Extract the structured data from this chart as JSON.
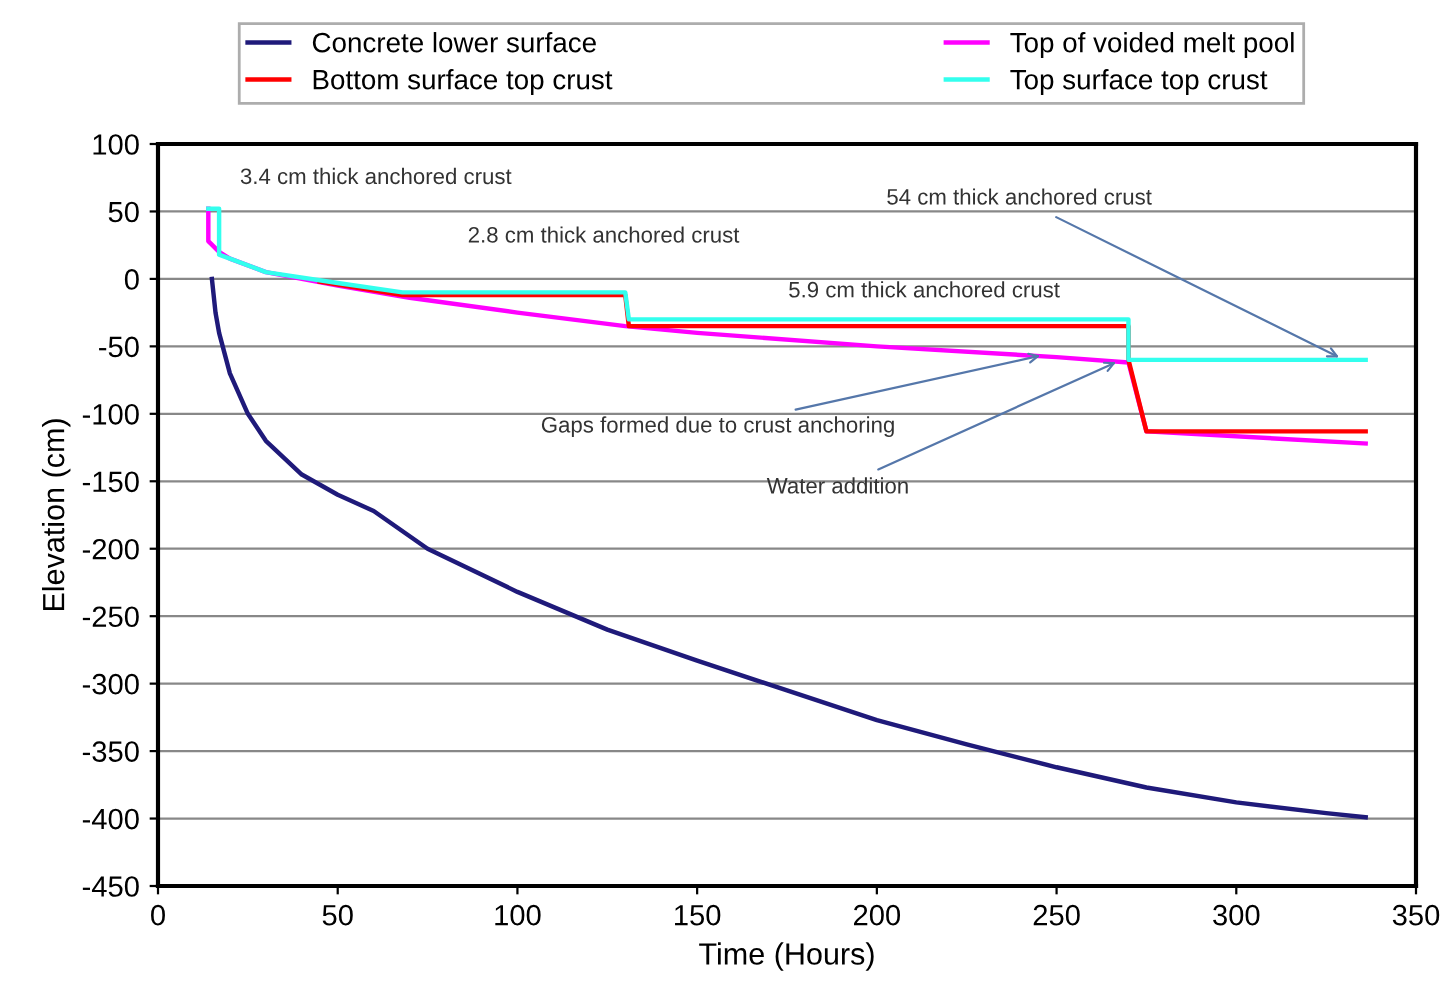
{
  "chart_data": {
    "type": "line",
    "xlabel": "Time (Hours)",
    "ylabel": "Elevation (cm)",
    "xlim": [
      0,
      350
    ],
    "xticks": [
      0,
      50,
      100,
      150,
      200,
      250,
      300,
      350
    ],
    "ylim": [
      -450,
      100
    ],
    "yticks": [
      -450,
      -400,
      -350,
      -300,
      -250,
      -200,
      -150,
      -100,
      -50,
      0,
      50,
      100
    ],
    "grid": "y",
    "legend": "top",
    "marker": "none",
    "line_style": "solid",
    "series": [
      {
        "name": "Concrete lower surface",
        "color": "#1f1a7a",
        "x": [
          15,
          16,
          17,
          20,
          25,
          30,
          40,
          50,
          60,
          75,
          100,
          125,
          150,
          175,
          200,
          225,
          250,
          275,
          300,
          325,
          336
        ],
        "values": [
          0,
          -25,
          -40,
          -70,
          -100,
          -120,
          -145,
          -160,
          -172,
          -200,
          -232,
          -260,
          -283,
          -305,
          -327,
          -345,
          -362,
          -377,
          -388,
          -396,
          -399
        ]
      },
      {
        "name": "Top of voided melt pool",
        "color": "#ff00ff",
        "x": [
          14,
          14,
          17,
          20,
          30,
          50,
          70,
          100,
          130,
          150,
          200,
          250,
          270,
          275,
          336
        ],
        "values": [
          52,
          28,
          20,
          15,
          5,
          -5,
          -14,
          -25,
          -35,
          -40,
          -50,
          -58,
          -62,
          -113,
          -122
        ]
      },
      {
        "name": "Bottom surface top crust",
        "color": "#ff0000",
        "x": [
          45,
          68,
          130,
          131,
          270,
          270,
          275,
          336
        ],
        "values": [
          -2,
          -12,
          -12,
          -35,
          -35,
          -60,
          -113,
          -113
        ]
      },
      {
        "name": "Top surface top crust",
        "color": "#33ffee",
        "x": [
          14,
          17,
          17,
          20,
          30,
          50,
          68,
          130,
          131,
          270,
          270,
          336
        ],
        "values": [
          52,
          52,
          18,
          15,
          5,
          -3,
          -10,
          -10,
          -30,
          -30,
          -60,
          -60
        ]
      }
    ],
    "annotations": [
      {
        "text": "3.4 cm thick anchored crust",
        "x": 15,
        "y": 52
      },
      {
        "text": "2.8 cm thick anchored crust",
        "x": 100,
        "y": -12
      },
      {
        "text": "5.9 cm thick anchored crust",
        "x": 200,
        "y": -30
      },
      {
        "text": "54 cm thick anchored crust",
        "x": 330,
        "y": -60
      },
      {
        "text": "Gaps formed due to crust anchoring",
        "x": 247,
        "y": -56
      },
      {
        "text": "Water addition",
        "x": 268,
        "y": -60
      }
    ]
  }
}
